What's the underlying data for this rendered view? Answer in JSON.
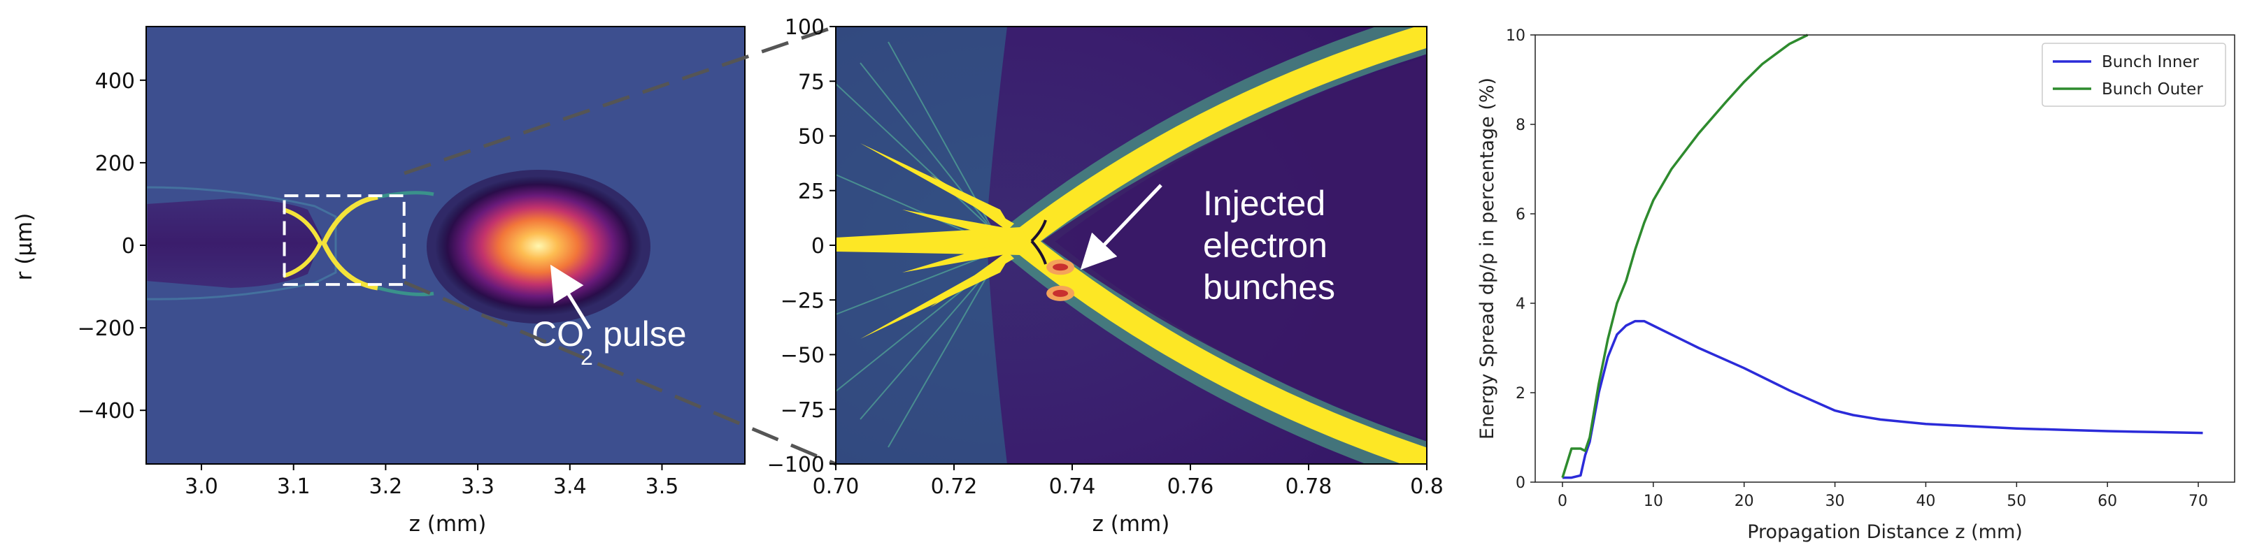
{
  "chart_data": [
    {
      "type": "heatmap",
      "panel": "left",
      "title": "",
      "xlabel": "z (mm)",
      "ylabel": "r (µm)",
      "xlim": [
        2.94,
        3.59
      ],
      "ylim": [
        -530,
        530
      ],
      "xticks": [
        "3.0",
        "3.1",
        "3.2",
        "3.3",
        "3.4",
        "3.5"
      ],
      "xtick_values": [
        3.0,
        3.1,
        3.2,
        3.3,
        3.4,
        3.5
      ],
      "yticks": [
        "400",
        "200",
        "0",
        "−200",
        "−400"
      ],
      "ytick_values": [
        400,
        200,
        0,
        -200,
        -400
      ],
      "zoom_box": {
        "z": [
          3.09,
          3.22
        ],
        "r": [
          -95,
          120
        ]
      },
      "annotation": {
        "main": "CO",
        "subscript": "2",
        "suffix": "pulse",
        "target": {
          "z": 3.38,
          "r": 0
        }
      }
    },
    {
      "type": "heatmap",
      "panel": "middle",
      "title": "",
      "xlabel": "z (mm)",
      "ylabel": "",
      "xlim": [
        0.7,
        0.8
      ],
      "ylim": [
        -100,
        100
      ],
      "xticks": [
        "0.70",
        "0.72",
        "0.74",
        "0.76",
        "0.78",
        "0.8"
      ],
      "xtick_values": [
        0.7,
        0.72,
        0.74,
        0.76,
        0.78,
        0.8
      ],
      "yticks": [
        "100",
        "75",
        "50",
        "25",
        "0",
        "−25",
        "−50",
        "−75",
        "−100"
      ],
      "ytick_values": [
        100,
        75,
        50,
        25,
        0,
        -25,
        -50,
        -75,
        -100
      ],
      "annotation": {
        "lines": [
          "Injected",
          "electron",
          "bunches"
        ]
      },
      "bunches": [
        {
          "z": 0.738,
          "r": -10
        },
        {
          "z": 0.738,
          "r": -22
        }
      ]
    },
    {
      "type": "line",
      "panel": "right",
      "title": "",
      "xlabel": "Propagation Distance z (mm)",
      "ylabel": "Energy Spread dp/p in percentage (%)",
      "xlim": [
        -3,
        74
      ],
      "ylim": [
        0,
        10
      ],
      "xticks": [
        "0",
        "10",
        "20",
        "30",
        "40",
        "50",
        "60",
        "70"
      ],
      "xtick_values": [
        0,
        10,
        20,
        30,
        40,
        50,
        60,
        70
      ],
      "yticks": [
        "0",
        "2",
        "4",
        "6",
        "8",
        "10"
      ],
      "ytick_values": [
        0,
        2,
        4,
        6,
        8,
        10
      ],
      "legend_position": "top-right",
      "series": [
        {
          "name": "Bunch Inner",
          "color": "#2b2bd9",
          "x": [
            0,
            1,
            2,
            2.5,
            3,
            4,
            5,
            6,
            7,
            8,
            9,
            10,
            12,
            15,
            20,
            25,
            30,
            32,
            35,
            40,
            45,
            50,
            55,
            60,
            65,
            70.5
          ],
          "y": [
            0.1,
            0.1,
            0.15,
            0.6,
            0.9,
            2.0,
            2.8,
            3.3,
            3.5,
            3.6,
            3.6,
            3.5,
            3.3,
            3.0,
            2.55,
            2.05,
            1.6,
            1.5,
            1.4,
            1.3,
            1.25,
            1.2,
            1.17,
            1.14,
            1.12,
            1.1
          ]
        },
        {
          "name": "Bunch Outer",
          "color": "#2e8b2e",
          "x": [
            0,
            1,
            2,
            2.5,
            3,
            4,
            5,
            6,
            7,
            8,
            9,
            10,
            12,
            15,
            18,
            20,
            22,
            25,
            27
          ],
          "y": [
            0.1,
            0.75,
            0.75,
            0.7,
            1.0,
            2.2,
            3.2,
            4.0,
            4.5,
            5.2,
            5.8,
            6.3,
            7.0,
            7.8,
            8.5,
            8.95,
            9.35,
            9.8,
            10.0
          ]
        }
      ]
    }
  ]
}
